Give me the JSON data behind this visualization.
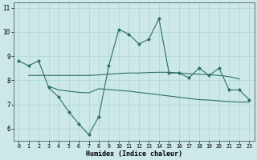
{
  "xlabel": "Humidex (Indice chaleur)",
  "x": [
    0,
    1,
    2,
    3,
    4,
    5,
    6,
    7,
    8,
    9,
    10,
    11,
    12,
    13,
    14,
    15,
    16,
    17,
    18,
    19,
    20,
    21,
    22,
    23
  ],
  "line_main": [
    8.8,
    8.6,
    8.8,
    7.7,
    7.3,
    6.7,
    6.2,
    5.75,
    6.5,
    8.6,
    10.1,
    9.9,
    9.5,
    9.7,
    10.55,
    8.3,
    8.3,
    8.1,
    8.5,
    8.2,
    8.5,
    7.6,
    7.6,
    7.2
  ],
  "line_avg1_x": [
    1,
    2,
    3,
    4,
    5,
    6,
    7,
    8,
    9,
    10,
    11,
    12,
    13,
    14,
    15,
    16,
    17,
    18,
    19,
    20,
    21,
    22
  ],
  "line_avg1_y": [
    8.2,
    8.2,
    8.2,
    8.2,
    8.2,
    8.2,
    8.2,
    8.22,
    8.25,
    8.28,
    8.3,
    8.3,
    8.32,
    8.33,
    8.33,
    8.3,
    8.27,
    8.25,
    8.23,
    8.2,
    8.15,
    8.05
  ],
  "line_avg2_x": [
    3,
    4,
    5,
    6,
    7,
    8,
    9,
    10,
    11,
    12,
    13,
    14,
    15,
    16,
    17,
    18,
    19,
    20,
    21,
    22,
    23
  ],
  "line_avg2_y": [
    7.75,
    7.6,
    7.55,
    7.5,
    7.48,
    7.65,
    7.62,
    7.58,
    7.55,
    7.5,
    7.45,
    7.4,
    7.35,
    7.3,
    7.25,
    7.2,
    7.18,
    7.15,
    7.12,
    7.1,
    7.1
  ],
  "color_main": "#2e6e68",
  "bg_color": "#cce8e8",
  "grid_color": "#aad4d4",
  "ylim": [
    5.5,
    11.2
  ],
  "yticks": [
    6,
    7,
    8,
    9,
    10,
    11
  ],
  "xlim": [
    -0.5,
    23.5
  ]
}
